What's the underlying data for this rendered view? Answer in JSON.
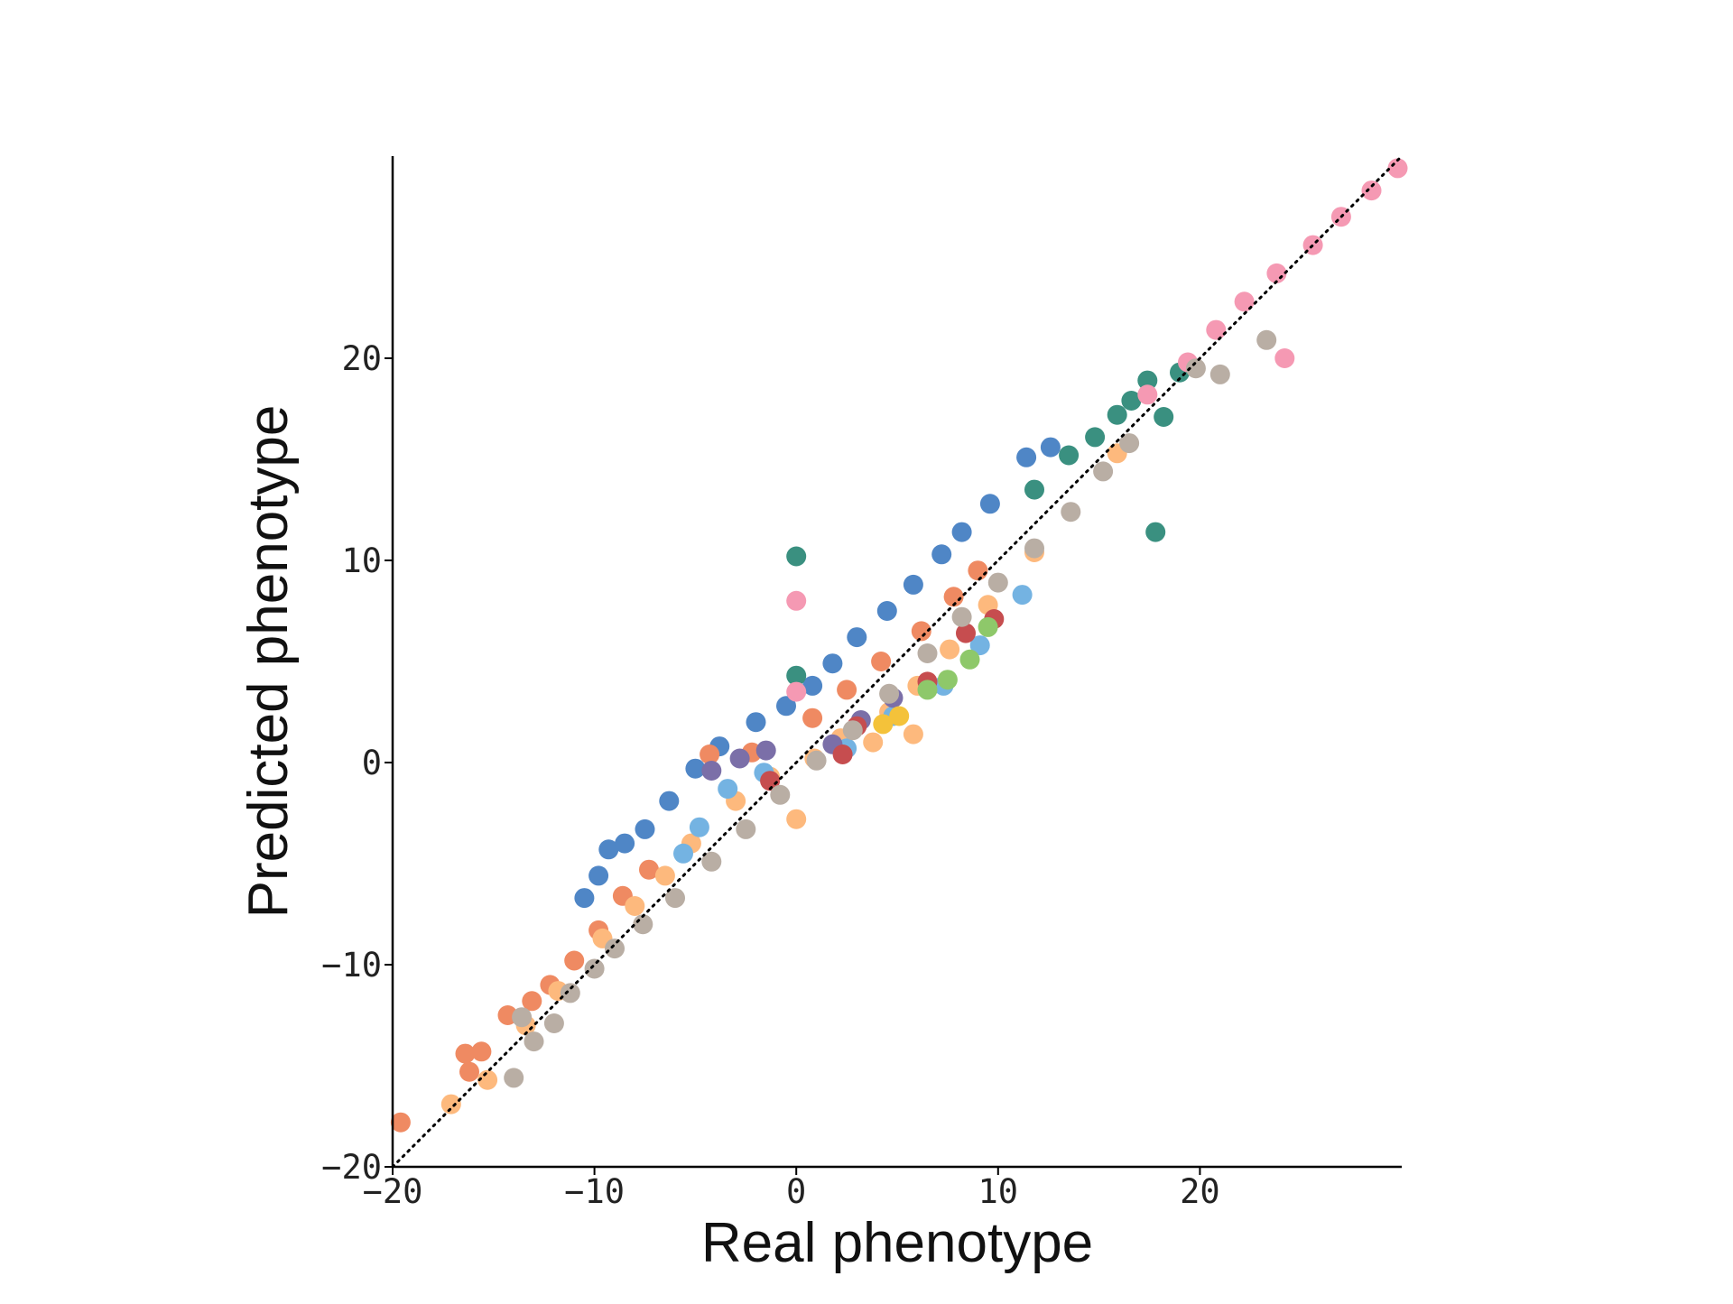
{
  "chart_data": {
    "type": "scatter",
    "title": "",
    "xlabel": "Real phenotype",
    "ylabel": "Predicted phenotype",
    "xlim": [
      -20,
      30
    ],
    "ylim": [
      -20,
      30
    ],
    "xticks": [
      -20,
      -10,
      0,
      10,
      20
    ],
    "yticks": [
      -20,
      -10,
      0,
      10,
      20
    ],
    "xtick_labels": [
      "−20",
      "−10",
      "0",
      "10",
      "20"
    ],
    "ytick_labels": [
      "−20",
      "−10",
      "0",
      "10",
      "20"
    ],
    "grid": false,
    "legend": "none",
    "reference_line": {
      "style": "dotted",
      "color": "#000000",
      "slope": 1,
      "intercept": 0
    },
    "series": [
      {
        "color": "#4f86c6",
        "points": [
          [
            -10.5,
            -6.7
          ],
          [
            -9.8,
            -5.6
          ],
          [
            -9.3,
            -4.3
          ],
          [
            -8.5,
            -4.0
          ],
          [
            -7.5,
            -3.3
          ],
          [
            -6.3,
            -1.9
          ],
          [
            -5.0,
            -0.3
          ],
          [
            -3.8,
            0.8
          ],
          [
            -2.0,
            2.0
          ],
          [
            -0.5,
            2.8
          ],
          [
            0.8,
            3.8
          ],
          [
            1.8,
            4.9
          ],
          [
            3.0,
            6.2
          ],
          [
            4.5,
            7.5
          ],
          [
            5.8,
            8.8
          ],
          [
            7.2,
            10.3
          ],
          [
            8.2,
            11.4
          ],
          [
            9.6,
            12.8
          ],
          [
            11.4,
            15.1
          ],
          [
            12.6,
            15.6
          ]
        ]
      },
      {
        "color": "#ef8a62",
        "points": [
          [
            -19.6,
            -17.8
          ],
          [
            -16.4,
            -14.4
          ],
          [
            -16.2,
            -15.3
          ],
          [
            -15.6,
            -14.3
          ],
          [
            -14.3,
            -12.5
          ],
          [
            -13.1,
            -11.8
          ],
          [
            -12.2,
            -11.0
          ],
          [
            -11.0,
            -9.8
          ],
          [
            -9.8,
            -8.3
          ],
          [
            -8.6,
            -6.6
          ],
          [
            -7.3,
            -5.3
          ],
          [
            -4.3,
            0.4
          ],
          [
            -2.2,
            0.5
          ],
          [
            0.8,
            2.2
          ],
          [
            2.5,
            3.6
          ],
          [
            4.2,
            5.0
          ],
          [
            6.2,
            6.5
          ],
          [
            7.8,
            8.2
          ],
          [
            9.0,
            9.5
          ]
        ]
      },
      {
        "color": "#fdb97d",
        "points": [
          [
            -17.1,
            -16.9
          ],
          [
            -15.3,
            -15.7
          ],
          [
            -13.4,
            -13.0
          ],
          [
            -11.8,
            -11.3
          ],
          [
            -9.6,
            -8.7
          ],
          [
            -8.0,
            -7.1
          ],
          [
            -6.5,
            -5.6
          ],
          [
            -5.2,
            -4.0
          ],
          [
            -3.0,
            -1.9
          ],
          [
            -1.3,
            -0.7
          ],
          [
            0.0,
            -2.8
          ],
          [
            0.9,
            0.2
          ],
          [
            2.2,
            1.2
          ],
          [
            3.8,
            1.0
          ],
          [
            4.6,
            2.5
          ],
          [
            5.8,
            1.4
          ],
          [
            6.0,
            3.8
          ],
          [
            7.6,
            5.6
          ],
          [
            9.5,
            7.8
          ],
          [
            11.8,
            10.4
          ],
          [
            15.9,
            15.3
          ]
        ]
      },
      {
        "color": "#74b3e2",
        "points": [
          [
            -5.6,
            -4.5
          ],
          [
            -4.8,
            -3.2
          ],
          [
            -3.4,
            -1.3
          ],
          [
            -1.6,
            -0.5
          ],
          [
            2.5,
            0.7
          ],
          [
            4.8,
            2.3
          ],
          [
            7.3,
            3.8
          ],
          [
            9.1,
            5.8
          ],
          [
            11.2,
            8.3
          ]
        ]
      },
      {
        "color": "#7b6fa8",
        "points": [
          [
            -4.2,
            -0.4
          ],
          [
            -2.8,
            0.2
          ],
          [
            -1.5,
            0.6
          ],
          [
            1.8,
            0.9
          ],
          [
            3.2,
            2.1
          ],
          [
            4.8,
            3.2
          ]
        ]
      },
      {
        "color": "#c64d4f",
        "points": [
          [
            -1.3,
            -0.9
          ],
          [
            2.3,
            0.4
          ],
          [
            3.0,
            1.8
          ],
          [
            6.5,
            4.0
          ],
          [
            8.4,
            6.4
          ],
          [
            9.8,
            7.1
          ]
        ]
      },
      {
        "color": "#8ec86a",
        "points": [
          [
            6.5,
            3.6
          ],
          [
            7.5,
            4.1
          ],
          [
            8.6,
            5.1
          ],
          [
            9.5,
            6.7
          ]
        ]
      },
      {
        "color": "#f4c23a",
        "points": [
          [
            4.3,
            1.9
          ],
          [
            5.1,
            2.3
          ]
        ]
      },
      {
        "color": "#3a9080",
        "points": [
          [
            0.0,
            10.2
          ],
          [
            0.0,
            4.3
          ],
          [
            11.8,
            13.5
          ],
          [
            13.5,
            15.2
          ],
          [
            14.8,
            16.1
          ],
          [
            15.9,
            17.2
          ],
          [
            16.6,
            17.9
          ],
          [
            17.4,
            18.9
          ],
          [
            18.2,
            17.1
          ],
          [
            17.8,
            11.4
          ],
          [
            19.0,
            19.3
          ]
        ]
      },
      {
        "color": "#f599b3",
        "points": [
          [
            0.0,
            8.0
          ],
          [
            0.0,
            3.5
          ],
          [
            17.4,
            18.2
          ],
          [
            19.4,
            19.8
          ],
          [
            20.8,
            21.4
          ],
          [
            22.2,
            22.8
          ],
          [
            23.8,
            24.2
          ],
          [
            24.2,
            20.0
          ],
          [
            25.6,
            25.6
          ],
          [
            27.0,
            27.0
          ],
          [
            28.5,
            28.3
          ],
          [
            29.8,
            29.4
          ]
        ]
      },
      {
        "color": "#b9aea4",
        "points": [
          [
            -14.0,
            -15.6
          ],
          [
            -13.6,
            -12.6
          ],
          [
            -13.0,
            -13.8
          ],
          [
            -12.0,
            -12.9
          ],
          [
            -11.2,
            -11.4
          ],
          [
            -10.0,
            -10.2
          ],
          [
            -9.0,
            -9.2
          ],
          [
            -7.6,
            -8.0
          ],
          [
            -6.0,
            -6.7
          ],
          [
            -4.2,
            -4.9
          ],
          [
            -2.5,
            -3.3
          ],
          [
            -0.8,
            -1.6
          ],
          [
            1.0,
            0.1
          ],
          [
            2.8,
            1.6
          ],
          [
            4.6,
            3.4
          ],
          [
            6.5,
            5.4
          ],
          [
            8.2,
            7.2
          ],
          [
            10.0,
            8.9
          ],
          [
            11.8,
            10.6
          ],
          [
            13.6,
            12.4
          ],
          [
            15.2,
            14.4
          ],
          [
            16.5,
            15.8
          ],
          [
            19.8,
            19.5
          ],
          [
            21.0,
            19.2
          ],
          [
            23.3,
            20.9
          ]
        ]
      }
    ]
  }
}
